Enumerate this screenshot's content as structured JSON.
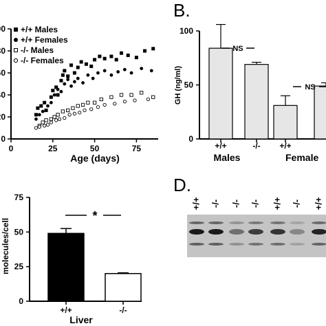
{
  "panel_b": {
    "letter": "B."
  },
  "panel_d": {
    "letter": "D.",
    "lane_labels": [
      "+/+",
      "-/-",
      "-/-",
      "-/-",
      "+/+",
      "-/-",
      "+/+"
    ]
  },
  "chart_data": [
    {
      "type": "scatter",
      "panel": "A",
      "xlabel": "Age (days)",
      "xlim": [
        0,
        88
      ],
      "ylim": [
        0,
        100
      ],
      "x_ticks": [
        "0",
        "25",
        "50",
        "75"
      ],
      "y_ticks": [
        "0",
        "20",
        "40",
        "60",
        "80",
        "100"
      ],
      "legend": [
        "+/+ Males",
        "+/+ Females",
        "-/- Males",
        "-/- Females"
      ],
      "series": [
        {
          "name": "+/+ Males",
          "marker": "filled-square",
          "points": [
            [
              15,
              22
            ],
            [
              16,
              28
            ],
            [
              18,
              30
            ],
            [
              20,
              33
            ],
            [
              21,
              26
            ],
            [
              24,
              38
            ],
            [
              25,
              44
            ],
            [
              27,
              47
            ],
            [
              28,
              40
            ],
            [
              30,
              53
            ],
            [
              31,
              58
            ],
            [
              32,
              62
            ],
            [
              34,
              57
            ],
            [
              36,
              67
            ],
            [
              38,
              60
            ],
            [
              40,
              65
            ],
            [
              42,
              70
            ],
            [
              45,
              68
            ],
            [
              48,
              66
            ],
            [
              50,
              72
            ],
            [
              53,
              75
            ],
            [
              56,
              73
            ],
            [
              60,
              75
            ],
            [
              63,
              72
            ],
            [
              66,
              78
            ],
            [
              70,
              76
            ],
            [
              75,
              74
            ],
            [
              80,
              80
            ],
            [
              85,
              82
            ]
          ]
        },
        {
          "name": "+/+ Females",
          "marker": "filled-circle",
          "points": [
            [
              15,
              18
            ],
            [
              17,
              22
            ],
            [
              19,
              25
            ],
            [
              22,
              30
            ],
            [
              24,
              33
            ],
            [
              26,
              40
            ],
            [
              28,
              45
            ],
            [
              30,
              43
            ],
            [
              32,
              50
            ],
            [
              34,
              54
            ],
            [
              36,
              48
            ],
            [
              38,
              52
            ],
            [
              40,
              55
            ],
            [
              43,
              51
            ],
            [
              46,
              58
            ],
            [
              49,
              55
            ],
            [
              52,
              60
            ],
            [
              56,
              62
            ],
            [
              60,
              58
            ],
            [
              64,
              61
            ],
            [
              68,
              63
            ],
            [
              72,
              60
            ],
            [
              78,
              64
            ],
            [
              84,
              62
            ]
          ]
        },
        {
          "name": "-/- Males",
          "marker": "open-square",
          "points": [
            [
              17,
              12
            ],
            [
              19,
              15
            ],
            [
              21,
              17
            ],
            [
              24,
              18
            ],
            [
              26,
              20
            ],
            [
              28,
              22
            ],
            [
              31,
              25
            ],
            [
              34,
              26
            ],
            [
              37,
              28
            ],
            [
              40,
              30
            ],
            [
              43,
              31
            ],
            [
              46,
              33
            ],
            [
              50,
              33
            ],
            [
              54,
              36
            ],
            [
              60,
              38
            ],
            [
              66,
              40
            ],
            [
              72,
              40
            ],
            [
              78,
              42
            ],
            [
              85,
              38
            ]
          ]
        },
        {
          "name": "-/- Females",
          "marker": "open-circle",
          "points": [
            [
              15,
              10
            ],
            [
              17,
              11
            ],
            [
              20,
              12
            ],
            [
              22,
              13
            ],
            [
              24,
              15
            ],
            [
              27,
              17
            ],
            [
              29,
              18
            ],
            [
              32,
              19
            ],
            [
              35,
              22
            ],
            [
              38,
              23
            ],
            [
              41,
              24
            ],
            [
              44,
              26
            ],
            [
              48,
              27
            ],
            [
              52,
              29
            ],
            [
              56,
              31
            ],
            [
              62,
              32
            ],
            [
              68,
              34
            ],
            [
              74,
              35
            ],
            [
              82,
              36
            ]
          ]
        }
      ]
    },
    {
      "type": "bar",
      "panel": "B",
      "ylabel": "GH (ng/ml)",
      "ylim": [
        0,
        100
      ],
      "y_ticks": [
        "0",
        "50",
        "100"
      ],
      "categories": [
        "+/+",
        "-/-",
        "+/+",
        "-/-"
      ],
      "groups": [
        "Males",
        "Female"
      ],
      "values": [
        84,
        69,
        31,
        49
      ],
      "errors": [
        22,
        2,
        9,
        3
      ],
      "annotations": [
        "NS",
        "NS"
      ]
    },
    {
      "type": "bar",
      "panel": "C",
      "ylabel": "molecules/cell",
      "ylim": [
        0,
        75
      ],
      "y_ticks": [
        "0",
        "25",
        "50",
        "75"
      ],
      "categories": [
        "+/+",
        "-/-"
      ],
      "group": "Liver",
      "values": [
        49,
        20
      ],
      "errors": [
        3.5,
        0.5
      ],
      "colors": [
        "#000000",
        "#ffffff"
      ],
      "annotation": "*"
    }
  ]
}
